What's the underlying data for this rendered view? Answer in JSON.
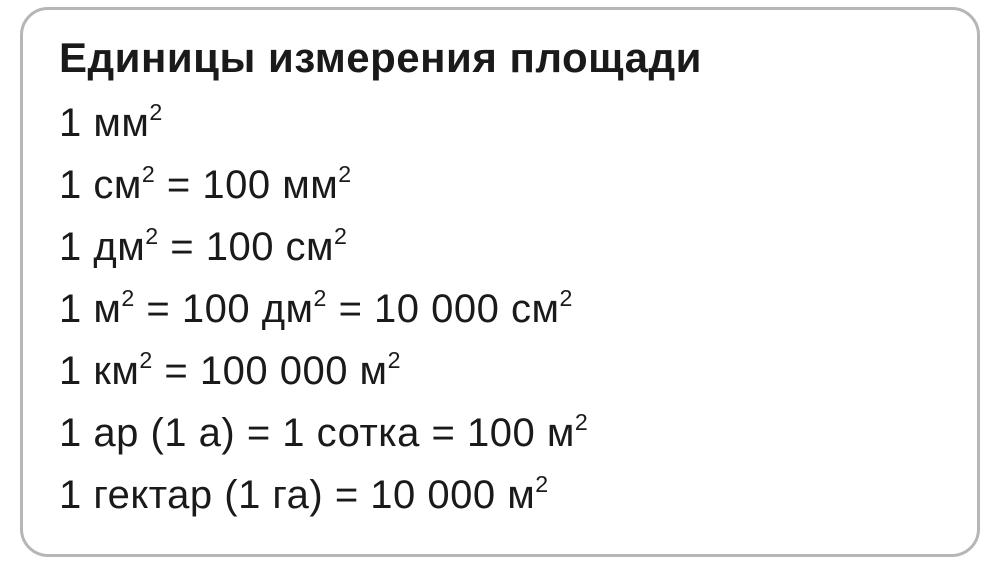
{
  "card": {
    "title": "Единицы измерения площади",
    "background_color": "#ffffff",
    "border_color": "#b8b6b4",
    "border_radius": 28,
    "title_fontsize": 42,
    "line_fontsize": 40,
    "text_color": "#1a1a1a",
    "lines": [
      {
        "segments": [
          {
            "t": "1 мм"
          },
          {
            "t": "2",
            "sup": true
          }
        ]
      },
      {
        "segments": [
          {
            "t": "1 см"
          },
          {
            "t": "2",
            "sup": true
          },
          {
            "t": " = 100 мм"
          },
          {
            "t": "2",
            "sup": true
          }
        ]
      },
      {
        "segments": [
          {
            "t": "1 дм"
          },
          {
            "t": "2",
            "sup": true
          },
          {
            "t": " = 100 см"
          },
          {
            "t": "2",
            "sup": true
          }
        ]
      },
      {
        "segments": [
          {
            "t": "1 м"
          },
          {
            "t": "2",
            "sup": true
          },
          {
            "t": " = 100 дм"
          },
          {
            "t": "2",
            "sup": true
          },
          {
            "t": " = 10 000 см"
          },
          {
            "t": "2",
            "sup": true
          }
        ]
      },
      {
        "segments": [
          {
            "t": "1 км"
          },
          {
            "t": "2",
            "sup": true
          },
          {
            "t": " = 100 000 м"
          },
          {
            "t": "2",
            "sup": true
          }
        ]
      },
      {
        "segments": [
          {
            "t": "1 ар (1 а) = 1 сотка = 100 м"
          },
          {
            "t": "2",
            "sup": true
          }
        ]
      },
      {
        "segments": [
          {
            "t": "1 гектар (1 га) = 10 000 м"
          },
          {
            "t": "2",
            "sup": true
          }
        ]
      }
    ]
  }
}
